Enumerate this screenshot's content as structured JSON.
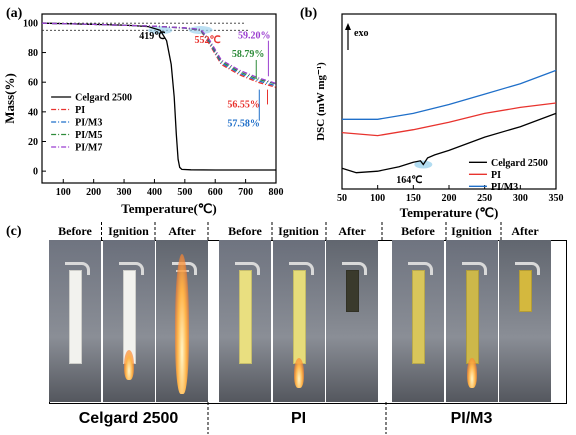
{
  "figure": {
    "panel_a": "(a)",
    "panel_b": "(b)",
    "panel_c": "(c)"
  },
  "chart_data": [
    {
      "type": "line",
      "panel": "(a)",
      "xlabel": "Temperature(℃)",
      "ylabel": "Mass(%)",
      "xlim": [
        30,
        800
      ],
      "ylim": [
        -8,
        106
      ],
      "xticks": [
        100,
        200,
        300,
        400,
        500,
        600,
        700,
        800
      ],
      "yticks": [
        0,
        20,
        40,
        60,
        80,
        100
      ],
      "legend_position": "bottom-left",
      "series": [
        {
          "name": "Celgard 2500",
          "color": "#000000",
          "dash": "solid",
          "x": [
            30,
            100,
            200,
            300,
            380,
            419,
            440,
            455,
            465,
            472,
            478,
            483,
            490,
            520,
            600,
            700,
            800
          ],
          "y": [
            99.8,
            99.5,
            99.0,
            98.5,
            97.5,
            95.0,
            88,
            72,
            50,
            25,
            8,
            2.5,
            1.2,
            0.9,
            0.8,
            0.8,
            0.8
          ]
        },
        {
          "name": "PI",
          "color": "#e8332e",
          "dash": "dash-dot",
          "x": [
            30,
            200,
            400,
            500,
            552,
            580,
            620,
            680,
            740,
            800
          ],
          "y": [
            99.8,
            99.0,
            97.8,
            96.5,
            95.0,
            86,
            72,
            65,
            60,
            56.55
          ]
        },
        {
          "name": "PI/M3",
          "color": "#1f6fc9",
          "dash": "dash-dot",
          "x": [
            30,
            200,
            400,
            500,
            552,
            580,
            620,
            680,
            740,
            800
          ],
          "y": [
            99.8,
            99.0,
            97.8,
            96.5,
            95.2,
            87,
            73,
            66,
            61,
            57.58
          ]
        },
        {
          "name": "PI/M5",
          "color": "#2e8b3a",
          "dash": "dash-dot",
          "x": [
            30,
            200,
            400,
            500,
            552,
            580,
            620,
            680,
            740,
            800
          ],
          "y": [
            99.8,
            99.0,
            97.8,
            96.6,
            95.4,
            88,
            74,
            67,
            62,
            58.79
          ]
        },
        {
          "name": "PI/M7",
          "color": "#9b3fd0",
          "dash": "dash-dot",
          "x": [
            30,
            200,
            400,
            500,
            552,
            580,
            620,
            680,
            740,
            800
          ],
          "y": [
            99.8,
            99.0,
            97.8,
            96.7,
            95.6,
            89,
            75,
            68,
            63,
            59.2
          ]
        }
      ],
      "annotations": [
        {
          "text": "419℃",
          "color": "#000000"
        },
        {
          "text": "552℃",
          "color": "#e8332e"
        },
        {
          "text": "59.20%",
          "color": "#9b3fd0"
        },
        {
          "text": "58.79%",
          "color": "#2e8b3a"
        },
        {
          "text": "56.55%",
          "color": "#e8332e"
        },
        {
          "text": "57.58%",
          "color": "#1f6fc9"
        }
      ]
    },
    {
      "type": "line",
      "panel": "(b)",
      "xlabel": "Temperature (℃)",
      "ylabel": "DSC (mW mg⁻¹)",
      "xlim": [
        50,
        350
      ],
      "xticks": [
        50,
        100,
        150,
        200,
        250,
        300,
        350
      ],
      "y_tick_labels_shown": false,
      "legend_position": "bottom-right",
      "series": [
        {
          "name": "Celgard 2500",
          "color": "#000000",
          "x": [
            50,
            70,
            100,
            130,
            150,
            160,
            164,
            170,
            180,
            200,
            250,
            300,
            350
          ],
          "y": [
            -3.4,
            -3.7,
            -3.6,
            -3.3,
            -3.0,
            -2.9,
            -3.15,
            -2.7,
            -2.5,
            -2.2,
            -1.3,
            -0.6,
            0.3
          ]
        },
        {
          "name": "PI",
          "color": "#e8332e",
          "x": [
            50,
            100,
            150,
            200,
            250,
            300,
            350
          ],
          "y": [
            -1.0,
            -1.2,
            -0.8,
            -0.3,
            0.3,
            0.7,
            1.0
          ]
        },
        {
          "name": "PI/M3",
          "color": "#1f6fc9",
          "x": [
            50,
            100,
            150,
            200,
            250,
            300,
            350
          ],
          "y": [
            -0.1,
            -0.1,
            0.3,
            0.9,
            1.6,
            2.3,
            3.2
          ]
        }
      ],
      "annotations": [
        {
          "text": "exo"
        },
        {
          "text": "164℃"
        }
      ]
    }
  ],
  "panel_c": {
    "groups": [
      {
        "caption": "Celgard 2500",
        "stages": [
          "Before",
          "Ignition",
          "After"
        ]
      },
      {
        "caption": "PI",
        "stages": [
          "Before",
          "Ignition",
          "After"
        ]
      },
      {
        "caption": "PI/M3",
        "stages": [
          "Before",
          "Ignition",
          "After"
        ]
      }
    ]
  }
}
